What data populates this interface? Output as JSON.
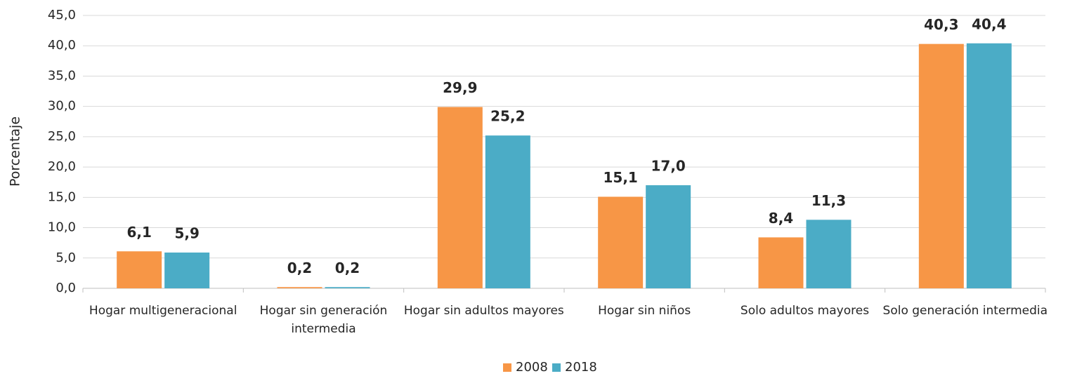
{
  "chart_data": {
    "type": "bar",
    "y_label": "Porcentaje",
    "categories": [
      "Hogar multigeneracional",
      "Hogar sin generación intermedia",
      "Hogar sin adultos mayores",
      "Hogar sin niños",
      "Solo adultos mayores",
      "Solo generación intermedia"
    ],
    "series": [
      {
        "name": "2008",
        "color": "#f79646",
        "values": [
          6.1,
          0.2,
          29.9,
          15.1,
          8.4,
          40.3
        ],
        "value_labels": [
          "6,1",
          "0,2",
          "29,9",
          "15,1",
          "8,4",
          "40,3"
        ]
      },
      {
        "name": "2018",
        "color": "#4bacc6",
        "values": [
          5.9,
          0.2,
          25.2,
          17.0,
          11.3,
          40.4
        ],
        "value_labels": [
          "5,9",
          "0,2",
          "25,2",
          "17,0",
          "11,3",
          "40,4"
        ]
      }
    ],
    "ylim": [
      0,
      45
    ],
    "yticks": [
      {
        "value": 0,
        "label": "0,0"
      },
      {
        "value": 5,
        "label": "5,0"
      },
      {
        "value": 10,
        "label": "10,0"
      },
      {
        "value": 15,
        "label": "15,0"
      },
      {
        "value": 20,
        "label": "20,0"
      },
      {
        "value": 25,
        "label": "25,0"
      },
      {
        "value": 30,
        "label": "30,0"
      },
      {
        "value": 35,
        "label": "35,0"
      },
      {
        "value": 40,
        "label": "40,0"
      },
      {
        "value": 45,
        "label": "45,0"
      }
    ],
    "grid": true,
    "legend": "bottom"
  }
}
